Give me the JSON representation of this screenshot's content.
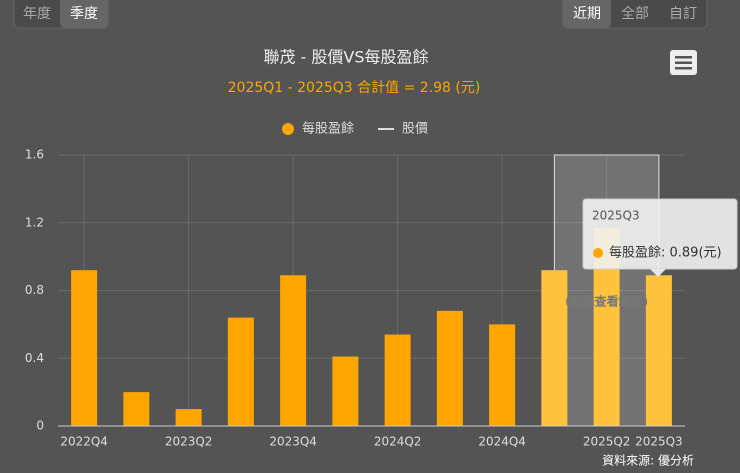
{
  "controls": {
    "period": [
      "年度",
      "季度"
    ],
    "range": [
      "近期",
      "全部",
      "自訂"
    ]
  },
  "chart_data": {
    "type": "bar",
    "title": "聯茂 - 股價VS每股盈餘",
    "subtitle": "2025Q1 - 2025Q3 合計值 = 2.98 (元)",
    "categories": [
      "2022Q4",
      null,
      "2023Q2",
      null,
      "2023Q4",
      null,
      "2024Q2",
      null,
      "2024Q4",
      null,
      "2025Q2",
      "2025Q3"
    ],
    "series": [
      {
        "name": "每股盈餘",
        "color": "#ffa500",
        "values": [
          0.92,
          0.2,
          0.1,
          0.64,
          0.89,
          0.41,
          0.54,
          0.68,
          0.6,
          0.92,
          1.17,
          0.89
        ]
      },
      {
        "name": "股價",
        "color": "#dddddd",
        "values": [
          null,
          null,
          null,
          null,
          null,
          null,
          null,
          null,
          null,
          null,
          null,
          null
        ]
      }
    ],
    "ylim": [
      0,
      1.6
    ],
    "yticks": [
      0,
      0.4,
      0.8,
      1.2,
      1.6
    ],
    "grid": true,
    "range_note": "(點擊查看範圍)",
    "tooltip": {
      "category": "2025Q3",
      "label": "每股盈餘: 0.89(元)"
    },
    "source": "資料來源: 優分析"
  }
}
